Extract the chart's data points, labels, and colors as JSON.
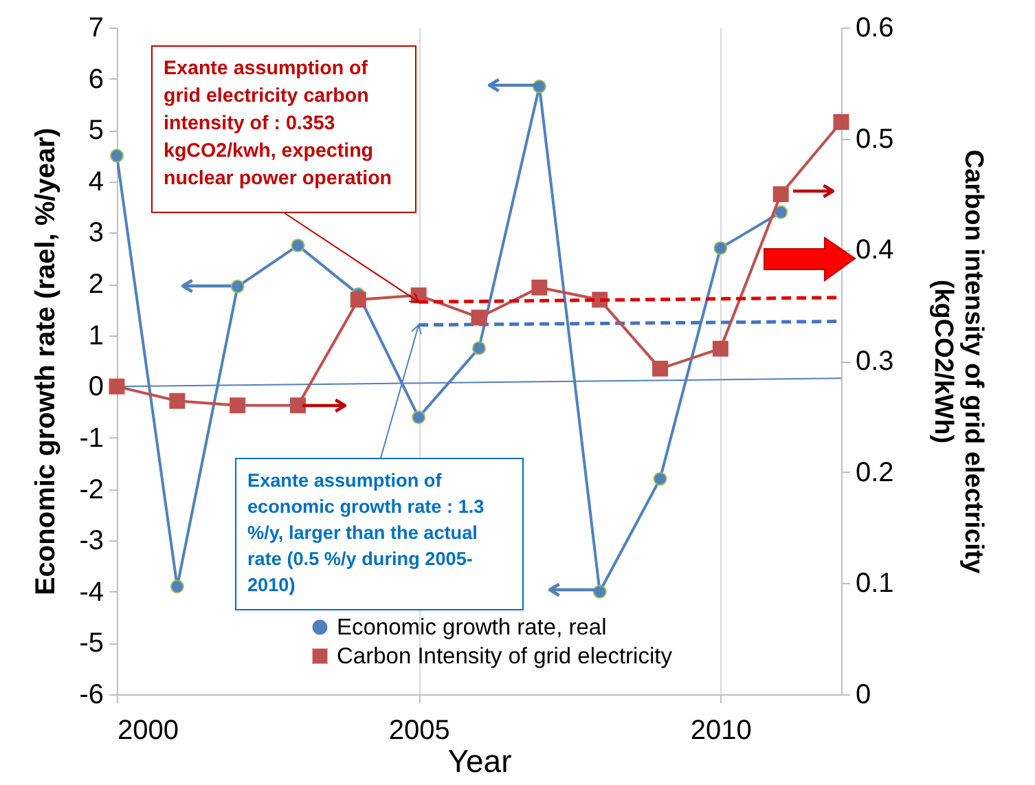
{
  "chart_data": {
    "type": "line",
    "xlabel": "Year",
    "ylabel": "Economic growth rate (rael, %/year)",
    "y2label": "Carbon intensity of grid electricity (kgCO2/kWh)",
    "x": [
      2000,
      2001,
      2002,
      2003,
      2004,
      2005,
      2006,
      2007,
      2008,
      2009,
      2010,
      2011,
      2012
    ],
    "xlim": [
      2000,
      2012
    ],
    "xticks": [
      2000,
      2005,
      2010
    ],
    "ylim": [
      -6,
      7
    ],
    "yticks": [
      -6,
      -5,
      -4,
      -3,
      -2,
      -1,
      0,
      1,
      2,
      3,
      4,
      5,
      6,
      7
    ],
    "y2lim": [
      0,
      0.6
    ],
    "y2ticks": [
      0,
      0.1,
      0.2,
      0.3,
      0.4,
      0.5,
      0.6
    ],
    "grid": "x",
    "legend": "bottom",
    "series": [
      {
        "name": "Economic growth rate, real",
        "color": "#4f81bd",
        "marker": "circle",
        "x": [
          2000,
          2001,
          2002,
          2003,
          2004,
          2005,
          2006,
          2007,
          2008,
          2009,
          2010,
          2011
        ],
        "values": [
          4.5,
          -3.9,
          1.95,
          2.75,
          1.8,
          -0.6,
          0.75,
          5.85,
          -4.0,
          -1.8,
          2.7,
          3.4
        ]
      },
      {
        "name": "Carbon Intensity of grid electricity",
        "color": "#c0504d",
        "marker": "square",
        "axis": "y2",
        "values": [
          0.277,
          0.264,
          0.26,
          0.26,
          0.355,
          0.359,
          0.339,
          0.366,
          0.355,
          0.293,
          0.311,
          0.45,
          0.515
        ]
      },
      {
        "color": "#e00000",
        "line_style": "dashed",
        "axis": "y2",
        "x": [
          2005,
          2012
        ],
        "values": [
          0.353,
          0.357
        ]
      },
      {
        "color": "#4472c4",
        "line_style": "dashed",
        "x": [
          2005,
          2012
        ],
        "values": [
          1.2,
          1.27
        ]
      },
      {
        "color": "#4f81bd",
        "x": [
          2000,
          2012
        ],
        "values": [
          0,
          0.16
        ]
      }
    ],
    "annotations": [
      {
        "text": "Exante assumption of grid electricity carbon intensity of : 0.353 kgCO2/kwh, expecting nuclear power operation",
        "x": 2005,
        "y": 1.65
      },
      {
        "text": "Exante assumption of economic growth rate : 1.3 %/y, larger than the actual rate (0.5 %/y during 2005-2010)",
        "x": 2005,
        "y": 1.2
      }
    ]
  }
}
